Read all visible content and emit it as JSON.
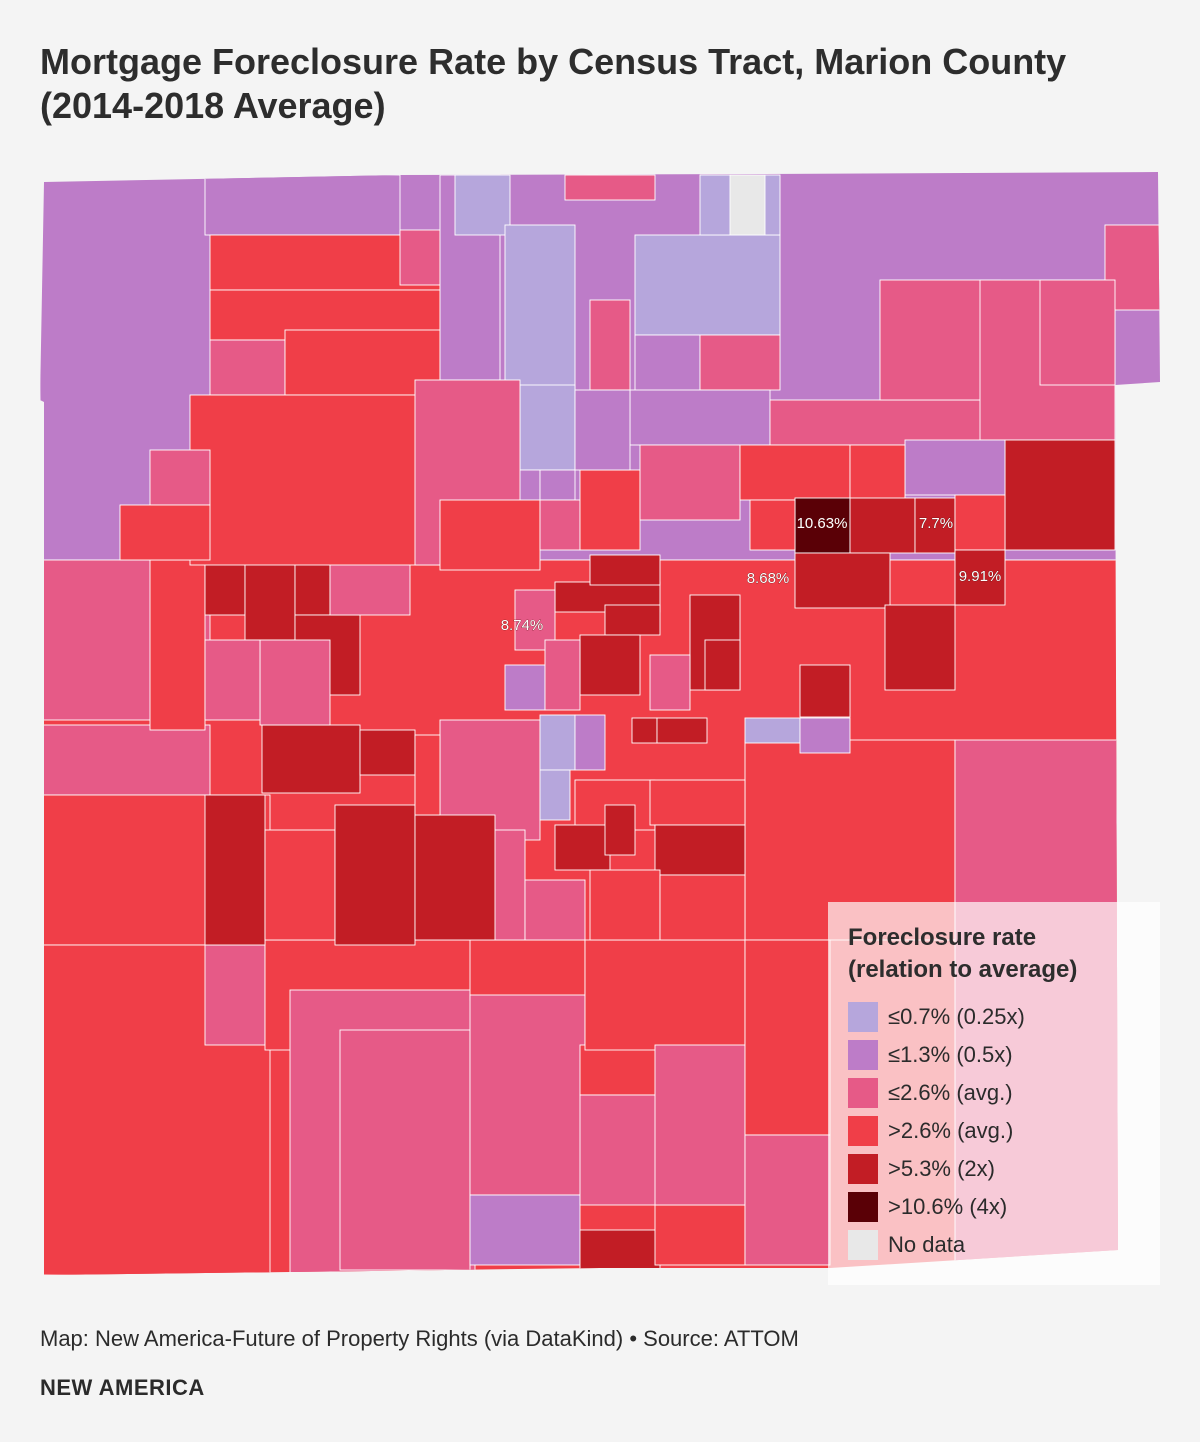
{
  "title": {
    "line1": "Mortgage Foreclosure Rate by Census Tract, Marion County",
    "line2": "(2014-2018 Average)"
  },
  "colors": {
    "very_low": "#b6a6dc",
    "low": "#bd7cc8",
    "below_avg": "#e65a87",
    "above_avg": "#f03e48",
    "high": "#c21d25",
    "very_high": "#5a0006",
    "no_data": "#e8e8e8"
  },
  "legend": {
    "title_line1": "Foreclosure rate",
    "title_line2": "(relation to average)",
    "items": [
      {
        "label": "≤0.7% (0.25x)",
        "color": "#b6a6dc"
      },
      {
        "label": "≤1.3% (0.5x)",
        "color": "#bd7cc8"
      },
      {
        "label": "≤2.6% (avg.)",
        "color": "#e65a87"
      },
      {
        "label": ">2.6% (avg.)",
        "color": "#f03e48"
      },
      {
        "label": ">5.3% (2x)",
        "color": "#c21d25"
      },
      {
        "label": ">10.6% (4x)",
        "color": "#5a0006"
      },
      {
        "label": "No data",
        "color": "#e8e8e8"
      }
    ]
  },
  "tract_labels": [
    {
      "text": "10.63%"
    },
    {
      "text": "7.7%"
    },
    {
      "text": "8.68%"
    },
    {
      "text": "9.91%"
    },
    {
      "text": "8.74%"
    }
  ],
  "footer": {
    "source": "Map: New America-Future of Property Rights (via DataKind) • Source: ATTOM",
    "brand": "NEW AMERICA"
  }
}
